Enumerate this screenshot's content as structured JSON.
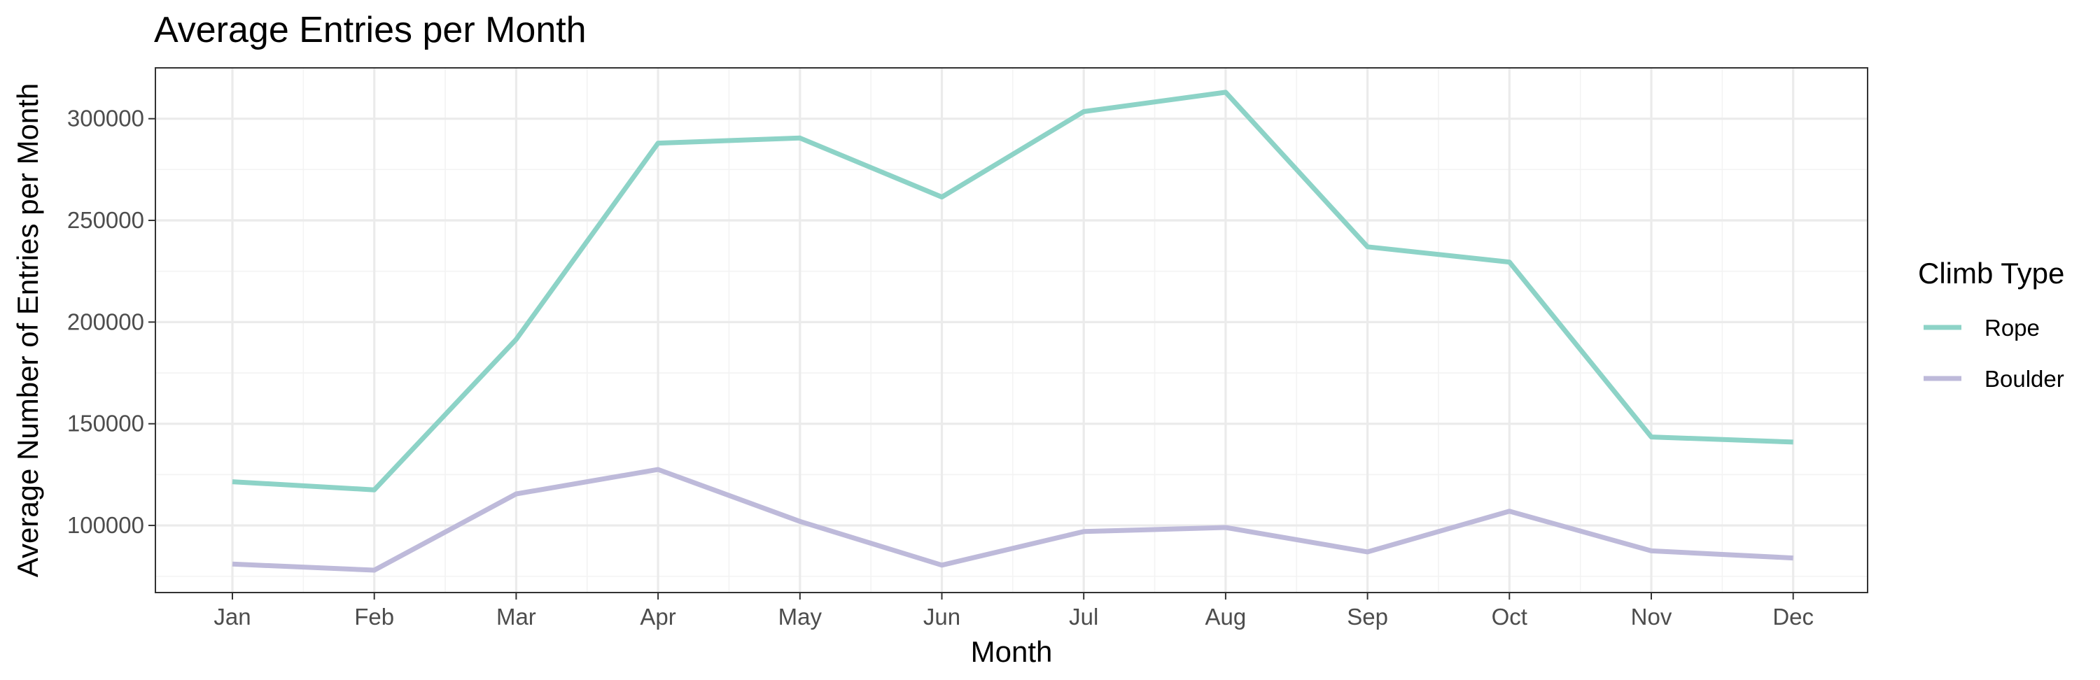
{
  "chart_data": {
    "type": "line",
    "title": "Average Entries per Month",
    "xlabel": "Month",
    "ylabel": "Average Number of Entries per Month",
    "categories": [
      "Jan",
      "Feb",
      "Mar",
      "Apr",
      "May",
      "Jun",
      "Jul",
      "Aug",
      "Sep",
      "Oct",
      "Nov",
      "Dec"
    ],
    "ylim": [
      67000,
      325000
    ],
    "y_ticks": [
      100000,
      150000,
      200000,
      250000,
      300000
    ],
    "grid": true,
    "legend": {
      "title": "Climb Type",
      "position": "right"
    },
    "series": [
      {
        "name": "Rope",
        "color": "#8dd3c7",
        "values": [
          121500,
          117500,
          191500,
          288000,
          290500,
          261500,
          303500,
          313000,
          237000,
          229500,
          143500,
          141000
        ]
      },
      {
        "name": "Boulder",
        "color": "#bebada",
        "values": [
          81000,
          78000,
          115500,
          127500,
          102000,
          80500,
          97000,
          99000,
          87000,
          107000,
          87500,
          84000
        ]
      }
    ]
  }
}
